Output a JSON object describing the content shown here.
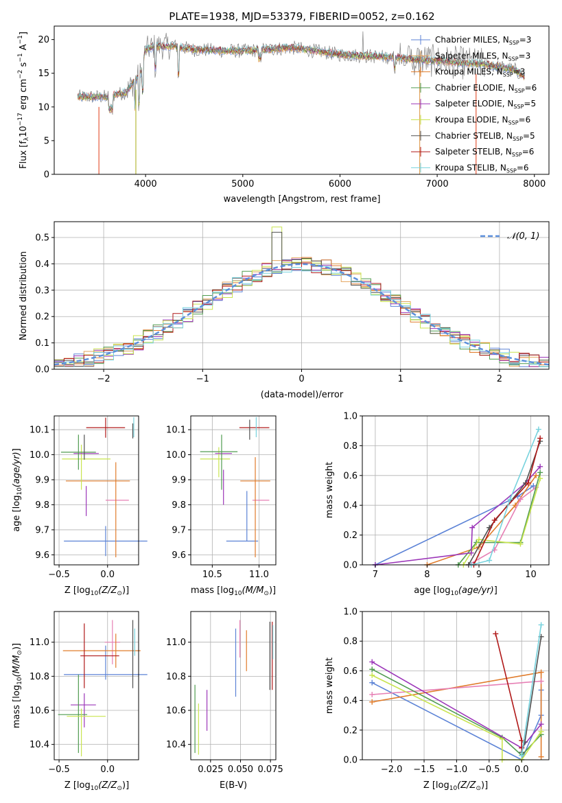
{
  "colors": {
    "c_chab_miles": "#5b82d6",
    "c_salp_miles": "#e2a35c",
    "c_krou_miles": "#e07b2a",
    "c_chab_elodie": "#4f9b4f",
    "c_salp_elodie": "#9b35b8",
    "c_krou_elodie": "#c8e44e",
    "c_chab_stelib": "#505050",
    "c_salp_stelib": "#b01818",
    "c_krou_stelib": "#76d2dd",
    "c_pink": "#e67fb4",
    "c_normal": "#5b8fdb"
  },
  "panel1": {
    "title": "PLATE=1938, MJD=53379, FIBERID=0052, z=0.162",
    "xlabel": "wavelength [Angstrom, rest frame]",
    "ylabel": "Flux [f",
    "xticks": [
      "4000",
      "5000",
      "6000",
      "7000",
      "8000"
    ],
    "yticks": [
      "0",
      "5",
      "10",
      "15",
      "20"
    ],
    "legend": [
      {
        "pre": "Chabrier MILES, N",
        "sub": "SSP",
        "post": "=3",
        "color": "c_chab_miles"
      },
      {
        "pre": "Salpeter MILES, N",
        "sub": "SSP",
        "post": "=3",
        "color": "c_salp_miles"
      },
      {
        "pre": "Kroupa MILES, N",
        "sub": "SSP",
        "post": "=3",
        "color": "c_krou_miles"
      },
      {
        "pre": "Chabrier ELODIE, N",
        "sub": "SSP",
        "post": "=6",
        "color": "c_chab_elodie"
      },
      {
        "pre": "Salpeter ELODIE, N",
        "sub": "SSP",
        "post": "=5",
        "color": "c_salp_elodie"
      },
      {
        "pre": "Kroupa ELODIE, N",
        "sub": "SSP",
        "post": "=6",
        "color": "c_krou_elodie"
      },
      {
        "pre": "Chabrier STELIB, N",
        "sub": "SSP",
        "post": "=5",
        "color": "c_chab_stelib"
      },
      {
        "pre": "Salpeter STELIB, N",
        "sub": "SSP",
        "post": "=6",
        "color": "c_salp_stelib"
      },
      {
        "pre": "Kroupa STELIB, N",
        "sub": "SSP",
        "post": "=6",
        "color": "c_krou_stelib"
      }
    ]
  },
  "panel2": {
    "xlabel": "(data-model)/error",
    "ylabel": "Normed distribution",
    "xticks": [
      "−2",
      "−1",
      "0",
      "1",
      "2"
    ],
    "yticks": [
      "0.0",
      "0.1",
      "0.2",
      "0.3",
      "0.4",
      "0.5"
    ],
    "legend_label": "𝒩(0, 1)"
  },
  "panel3": {
    "xlabel": "Z [log",
    "ylabel": "age  [log",
    "xticks": [
      "−0.5",
      "0.0"
    ],
    "yticks": [
      "9.6",
      "9.7",
      "9.8",
      "9.9",
      "10.0",
      "10.1"
    ]
  },
  "panel4": {
    "xlabel": "mass [log",
    "xticks": [
      "10.5",
      "11.0"
    ],
    "yticks": [
      "9.6",
      "9.7",
      "9.8",
      "9.9",
      "10.0",
      "10.1"
    ]
  },
  "panel5": {
    "xlabel": "age  [log",
    "ylabel": "mass weight",
    "xticks": [
      "7",
      "8",
      "9",
      "10"
    ],
    "yticks": [
      "0.0",
      "0.2",
      "0.4",
      "0.6",
      "0.8",
      "1.0"
    ]
  },
  "panel6": {
    "xlabel": "Z [log",
    "ylabel": "mass [log",
    "xticks": [
      "−0.5",
      "0.0"
    ],
    "yticks": [
      "10.4",
      "10.6",
      "10.8",
      "11.0"
    ]
  },
  "panel7": {
    "xlabel": "E(B-V)",
    "xticks": [
      "0.025",
      "0.050",
      "0.075"
    ],
    "yticks": [
      "10.4",
      "10.6",
      "10.8",
      "11.0"
    ]
  },
  "panel8": {
    "xlabel": "Z [log",
    "ylabel": "mass weight",
    "xticks": [
      "−2.0",
      "−1.5",
      "−1.0",
      "−0.5",
      "0.0"
    ],
    "yticks": [
      "0.0",
      "0.2",
      "0.4",
      "0.6",
      "0.8",
      "1.0"
    ]
  },
  "chart_data": [
    {
      "type": "line",
      "title": "PLATE=1938, MJD=53379, FIBERID=0052, z=0.162",
      "xlabel": "wavelength [Angstrom, rest frame]",
      "ylabel": "Flux [fλ 10^-17 erg cm^-2 s^-1 A^-1]",
      "xlim": [
        3060,
        8150
      ],
      "ylim": [
        0,
        22
      ],
      "spectrum_anchors": {
        "x": [
          3300,
          3600,
          3800,
          3950,
          4000,
          4100,
          4300,
          4500,
          5000,
          5500,
          6000,
          6500,
          7000,
          7500,
          7800,
          7900
        ],
        "y": [
          11.5,
          11.5,
          12.2,
          15,
          18.5,
          19,
          19,
          18.5,
          18.3,
          18.8,
          17.8,
          17.4,
          16.8,
          16.3,
          15.5,
          14.5
        ]
      },
      "model_dropouts_x": [
        3520,
        3900,
        6820,
        7400
      ]
    },
    {
      "type": "histogram",
      "xlabel": "(data-model)/error",
      "ylabel": "Normed distribution",
      "xlim": [
        -2.5,
        2.5
      ],
      "ylim": [
        0,
        0.56
      ],
      "bin_width": 0.1,
      "reference_curve": "N(0,1)",
      "peak_values": [
        0.54,
        0.52
      ]
    },
    {
      "type": "errorbar",
      "xlabel": "Z [log10(Z/Zsun)]",
      "ylabel": "age [log10(age/yr)]",
      "xlim": [
        -0.55,
        0.32
      ],
      "ylim": [
        9.56,
        10.155
      ],
      "points": [
        {
          "x": -0.02,
          "xerr": 0.43,
          "y": 9.655,
          "yerr": 0.06,
          "color": "c_chab_miles"
        },
        {
          "x": 0.1,
          "xerr": 0.12,
          "y": 9.818,
          "yerr": 0.0,
          "color": "c_pink"
        },
        {
          "x": -0.1,
          "xerr": 0.33,
          "y": 9.895,
          "yerr": 0.0,
          "color": "c_krou_miles"
        },
        {
          "x": 0.085,
          "xerr": 0.0,
          "y": 9.78,
          "yerr": 0.19,
          "color": "c_krou_miles"
        },
        {
          "x": -0.22,
          "xerr": 0.0,
          "y": 9.815,
          "yerr": 0.06,
          "color": "c_salp_elodie"
        },
        {
          "x": -0.22,
          "xerr": 0.25,
          "y": 9.983,
          "yerr": 0.0,
          "color": "c_krou_elodie"
        },
        {
          "x": -0.27,
          "xerr": 0.0,
          "y": 9.95,
          "yerr": 0.09,
          "color": "c_krou_elodie"
        },
        {
          "x": -0.22,
          "xerr": 0.13,
          "y": 10.005,
          "yerr": 0.0,
          "color": "c_salp_elodie"
        },
        {
          "x": -0.3,
          "xerr": 0.18,
          "y": 10.01,
          "yerr": 0.07,
          "color": "c_chab_elodie"
        },
        {
          "x": -0.24,
          "xerr": 0.0,
          "y": 10.03,
          "yerr": 0.05,
          "color": "c_chab_stelib"
        },
        {
          "x": -0.02,
          "xerr": 0.2,
          "y": 10.108,
          "yerr": 0.04,
          "color": "c_salp_stelib"
        },
        {
          "x": 0.27,
          "xerr": 0.0,
          "y": 10.11,
          "yerr": 0.04,
          "color": "c_krou_stelib"
        },
        {
          "x": 0.26,
          "xerr": 0.0,
          "y": 10.095,
          "yerr": 0.03,
          "color": "c_chab_stelib"
        }
      ]
    },
    {
      "type": "errorbar",
      "xlabel": "mass [log10(M/Msun)]",
      "ylabel": "age [log10(age/yr)]",
      "xlim": [
        10.27,
        11.18
      ],
      "ylim": [
        9.56,
        10.155
      ],
      "points": [
        {
          "x": 10.82,
          "xerr": 0.17,
          "y": 9.655,
          "yerr": 0.0,
          "color": "c_chab_miles"
        },
        {
          "x": 10.87,
          "xerr": 0.0,
          "y": 9.755,
          "yerr": 0.1,
          "color": "c_chab_miles"
        },
        {
          "x": 11.02,
          "xerr": 0.09,
          "y": 9.818,
          "yerr": 0.0,
          "color": "c_pink"
        },
        {
          "x": 10.96,
          "xerr": 0.0,
          "y": 9.79,
          "yerr": 0.2,
          "color": "c_krou_miles"
        },
        {
          "x": 10.96,
          "xerr": 0.16,
          "y": 9.895,
          "yerr": 0.0,
          "color": "c_krou_miles"
        },
        {
          "x": 10.62,
          "xerr": 0.0,
          "y": 9.87,
          "yerr": 0.07,
          "color": "c_salp_elodie"
        },
        {
          "x": 10.53,
          "xerr": 0.16,
          "y": 9.983,
          "yerr": 0.0,
          "color": "c_krou_elodie"
        },
        {
          "x": 10.57,
          "xerr": 0.0,
          "y": 9.97,
          "yerr": 0.06,
          "color": "c_krou_elodie"
        },
        {
          "x": 10.62,
          "xerr": 0.09,
          "y": 10.005,
          "yerr": 0.0,
          "color": "c_salp_elodie"
        },
        {
          "x": 10.57,
          "xerr": 0.2,
          "y": 10.012,
          "yerr": 0.0,
          "color": "c_chab_elodie"
        },
        {
          "x": 10.6,
          "xerr": 0.0,
          "y": 9.97,
          "yerr": 0.11,
          "color": "c_chab_elodie"
        },
        {
          "x": 10.95,
          "xerr": 0.16,
          "y": 10.108,
          "yerr": 0.0,
          "color": "c_salp_stelib"
        },
        {
          "x": 10.9,
          "xerr": 0.0,
          "y": 10.1,
          "yerr": 0.04,
          "color": "c_chab_stelib"
        },
        {
          "x": 10.97,
          "xerr": 0.0,
          "y": 10.11,
          "yerr": 0.04,
          "color": "c_krou_stelib"
        }
      ]
    },
    {
      "type": "line",
      "xlabel": "age [log10(age/yr)]",
      "ylabel": "mass weight",
      "xlim": [
        6.75,
        10.35
      ],
      "ylim": [
        0,
        1
      ],
      "series": [
        {
          "color": "c_chab_miles",
          "x": [
            7.0,
            9.75,
            10.05
          ],
          "y": [
            0.0,
            0.46,
            0.53
          ]
        },
        {
          "color": "c_krou_miles",
          "x": [
            8.0,
            9.0,
            9.7,
            10.1
          ],
          "y": [
            0.0,
            0.12,
            0.4,
            0.6
          ]
        },
        {
          "color": "c_pink",
          "x": [
            8.8,
            9.3,
            9.8,
            10.1
          ],
          "y": [
            0.0,
            0.1,
            0.44,
            0.52
          ]
        },
        {
          "color": "c_chab_elodie",
          "x": [
            8.6,
            8.95,
            9.8,
            10.18
          ],
          "y": [
            0.0,
            0.15,
            0.15,
            0.62
          ]
        },
        {
          "color": "c_krou_elodie",
          "x": [
            8.7,
            9.0,
            9.8,
            10.18
          ],
          "y": [
            0.0,
            0.17,
            0.14,
            0.58
          ]
        },
        {
          "color": "c_salp_elodie",
          "x": [
            7.0,
            8.85,
            8.87,
            9.9,
            10.18
          ],
          "y": [
            0.0,
            0.08,
            0.25,
            0.55,
            0.66
          ]
        },
        {
          "color": "c_chab_stelib",
          "x": [
            8.8,
            9.2,
            9.9,
            10.18
          ],
          "y": [
            0.0,
            0.25,
            0.55,
            0.83
          ]
        },
        {
          "color": "c_salp_stelib",
          "x": [
            8.9,
            9.3,
            9.95,
            10.18
          ],
          "y": [
            0.0,
            0.3,
            0.55,
            0.85
          ]
        },
        {
          "color": "c_krou_stelib",
          "x": [
            8.85,
            9.2,
            9.6,
            10.15
          ],
          "y": [
            0.0,
            0.03,
            0.44,
            0.91
          ]
        }
      ]
    },
    {
      "type": "errorbar",
      "xlabel": "Z [log10(Z/Zsun)]",
      "ylabel": "mass [log10(M/Msun)]",
      "xlim": [
        -0.55,
        0.32
      ],
      "ylim": [
        10.31,
        11.18
      ],
      "points": [
        {
          "x": -0.02,
          "xerr": 0.43,
          "y": 10.81,
          "yerr": 0.0,
          "color": "c_chab_miles"
        },
        {
          "x": -0.02,
          "xerr": 0.0,
          "y": 10.88,
          "yerr": 0.1,
          "color": "c_chab_miles"
        },
        {
          "x": 0.05,
          "xerr": 0.08,
          "y": 11.0,
          "yerr": 0.13,
          "color": "c_pink"
        },
        {
          "x": -0.06,
          "xerr": 0.4,
          "y": 10.95,
          "yerr": 0.0,
          "color": "c_krou_miles"
        },
        {
          "x": 0.085,
          "xerr": 0.0,
          "y": 10.95,
          "yerr": 0.1,
          "color": "c_krou_miles"
        },
        {
          "x": -0.08,
          "xerr": 0.2,
          "y": 10.92,
          "yerr": 0.0,
          "color": "c_salp_stelib"
        },
        {
          "x": -0.24,
          "xerr": 0.0,
          "y": 10.92,
          "yerr": 0.19,
          "color": "c_salp_stelib"
        },
        {
          "x": -0.25,
          "xerr": 0.13,
          "y": 10.632,
          "yerr": 0.0,
          "color": "c_salp_elodie"
        },
        {
          "x": -0.24,
          "xerr": 0.0,
          "y": 10.6,
          "yerr": 0.1,
          "color": "c_salp_elodie"
        },
        {
          "x": -0.36,
          "xerr": 0.15,
          "y": 10.575,
          "yerr": 0.0,
          "color": "c_chab_elodie"
        },
        {
          "x": -0.3,
          "xerr": 0.0,
          "y": 10.58,
          "yerr": 0.23,
          "color": "c_chab_elodie"
        },
        {
          "x": -0.22,
          "xerr": 0.2,
          "y": 10.565,
          "yerr": 0.0,
          "color": "c_krou_elodie"
        },
        {
          "x": -0.27,
          "xerr": 0.0,
          "y": 10.47,
          "yerr": 0.14,
          "color": "c_krou_elodie"
        },
        {
          "x": 0.26,
          "xerr": 0.0,
          "y": 10.93,
          "yerr": 0.2,
          "color": "c_chab_stelib"
        },
        {
          "x": 0.28,
          "xerr": 0.0,
          "y": 11.0,
          "yerr": 0.08,
          "color": "c_krou_stelib"
        }
      ]
    },
    {
      "type": "errorbar",
      "xlabel": "E(B-V)",
      "ylabel": "mass [log10(M/Msun)]",
      "xlim": [
        0.0085,
        0.0795
      ],
      "ylim": [
        10.31,
        11.18
      ],
      "points": [
        {
          "x": 0.012,
          "y": 10.55,
          "yerr": 0.2,
          "color": "c_chab_elodie"
        },
        {
          "x": 0.015,
          "y": 10.49,
          "yerr": 0.15,
          "color": "c_krou_elodie"
        },
        {
          "x": 0.022,
          "y": 10.6,
          "yerr": 0.12,
          "color": "c_salp_elodie"
        },
        {
          "x": 0.046,
          "y": 10.88,
          "yerr": 0.2,
          "color": "c_chab_miles"
        },
        {
          "x": 0.0495,
          "y": 11.02,
          "yerr": 0.11,
          "color": "c_pink"
        },
        {
          "x": 0.055,
          "y": 10.95,
          "yerr": 0.12,
          "color": "c_krou_miles"
        },
        {
          "x": 0.0745,
          "y": 10.92,
          "yerr": 0.2,
          "color": "c_chab_stelib"
        },
        {
          "x": 0.0765,
          "y": 10.92,
          "yerr": 0.2,
          "color": "c_salp_stelib"
        },
        {
          "x": 0.077,
          "y": 11.0,
          "yerr": 0.1,
          "color": "c_krou_stelib"
        }
      ]
    },
    {
      "type": "line",
      "xlabel": "Z [log10(Z/Zsun)]",
      "ylabel": "mass weight",
      "xlim": [
        -2.45,
        0.42
      ],
      "ylim": [
        0,
        1
      ],
      "series": [
        {
          "color": "c_chab_miles",
          "x": [
            -2.3,
            0.0,
            0.3,
            0.3
          ],
          "y": [
            0.52,
            0.0,
            0.3,
            0.47
          ]
        },
        {
          "color": "c_krou_miles",
          "x": [
            -2.3,
            0.3,
            0.3
          ],
          "y": [
            0.39,
            0.59,
            0.02
          ]
        },
        {
          "color": "c_pink",
          "x": [
            -2.3,
            0.3
          ],
          "y": [
            0.44,
            0.53
          ]
        },
        {
          "color": "c_chab_elodie",
          "x": [
            -2.3,
            -0.3,
            0.0,
            0.3
          ],
          "y": [
            0.61,
            0.15,
            0.03,
            0.17
          ]
        },
        {
          "color": "c_krou_elodie",
          "x": [
            -2.3,
            -0.3,
            -0.3,
            0.0,
            0.3
          ],
          "y": [
            0.57,
            0.14,
            0.0,
            0.0,
            0.19
          ]
        },
        {
          "color": "c_salp_elodie",
          "x": [
            -2.3,
            0.0,
            0.3
          ],
          "y": [
            0.66,
            0.08,
            0.24
          ]
        },
        {
          "color": "c_chab_stelib",
          "x": [
            0.0,
            0.05,
            0.3
          ],
          "y": [
            0.05,
            0.12,
            0.83
          ]
        },
        {
          "color": "c_salp_stelib",
          "x": [
            -0.4,
            0.0,
            0.0
          ],
          "y": [
            0.85,
            0.13,
            0.08
          ]
        },
        {
          "color": "c_krou_stelib",
          "x": [
            0.0,
            0.3
          ],
          "y": [
            0.03,
            0.91
          ]
        }
      ]
    }
  ]
}
